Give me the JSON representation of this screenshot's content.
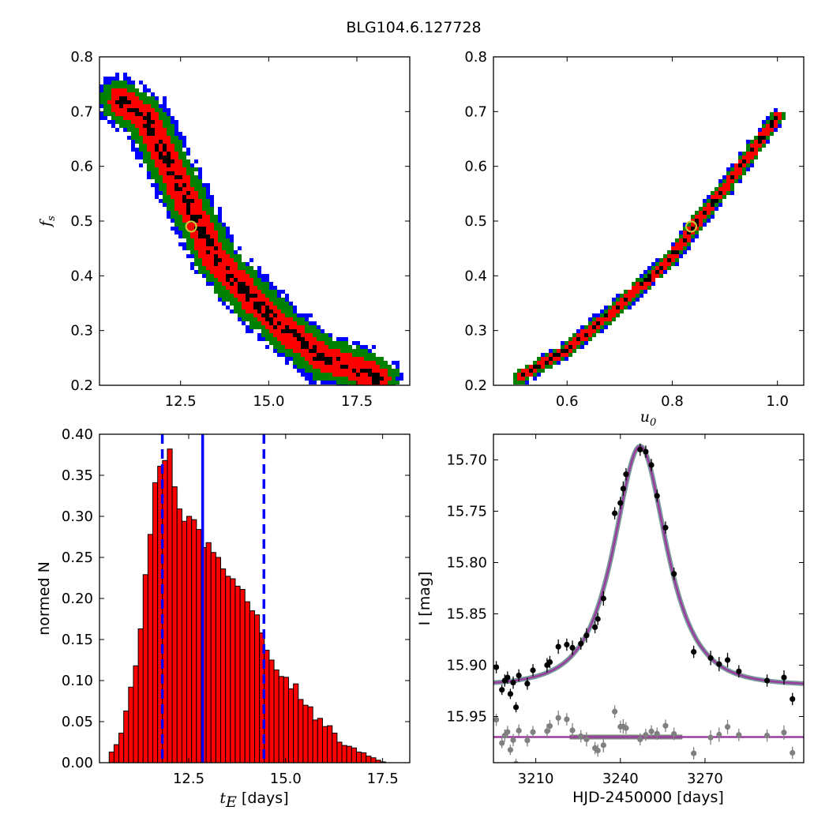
{
  "figure_title": "BLG104.6.127728",
  "colors": {
    "sigma1": "#000000",
    "sigma2": "#ff0000",
    "sigma3": "#008000",
    "sigma4": "#0000ff",
    "best_marker": "#c8c83c",
    "hist_fill": "#ff0000",
    "median_line": "#0000ff",
    "model_line": "#9b3aa0",
    "model_under": "#7a9a9a",
    "data_main": "#000000",
    "data_resid": "#808080"
  },
  "chart_data": [
    {
      "id": "tE_fs",
      "type": "heatmap",
      "xlabel": "",
      "ylabel_main": "f",
      "ylabel_sub": "s",
      "xlim": [
        10.2,
        19.0
      ],
      "ylim": [
        0.2,
        0.8
      ],
      "xticks": [
        12.5,
        15.0,
        17.5
      ],
      "xtick_labels": [
        "12.5",
        "15.0",
        "17.5"
      ],
      "yticks": [
        0.2,
        0.3,
        0.4,
        0.5,
        0.6,
        0.7,
        0.8
      ],
      "ytick_labels": [
        "0.2",
        "0.3",
        "0.4",
        "0.5",
        "0.6",
        "0.7",
        "0.8"
      ],
      "ridge": [
        [
          10.8,
          0.72
        ],
        [
          11.5,
          0.69
        ],
        [
          12.5,
          0.56
        ],
        [
          13.5,
          0.43
        ],
        [
          14.5,
          0.36
        ],
        [
          15.5,
          0.3
        ],
        [
          16.5,
          0.25
        ],
        [
          17.5,
          0.23
        ],
        [
          18.1,
          0.21
        ]
      ],
      "half_widths": [
        0.25,
        0.6,
        1.0,
        1.25
      ],
      "best_fit": [
        12.8,
        0.49
      ]
    },
    {
      "id": "u0_fs",
      "type": "heatmap",
      "xlabel_main": "u",
      "xlabel_sub": "0",
      "ylabel": "",
      "xlim": [
        0.46,
        1.05
      ],
      "ylim": [
        0.2,
        0.8
      ],
      "xticks": [
        0.6,
        0.8,
        1.0
      ],
      "xtick_labels": [
        "0.6",
        "0.8",
        "1.0"
      ],
      "yticks": [
        0.2,
        0.3,
        0.4,
        0.5,
        0.6,
        0.7,
        0.8
      ],
      "ytick_labels": [
        "0.2",
        "0.3",
        "0.4",
        "0.5",
        "0.6",
        "0.7",
        "0.8"
      ],
      "ridge": [
        [
          0.51,
          0.215
        ],
        [
          0.6,
          0.265
        ],
        [
          0.7,
          0.345
        ],
        [
          0.8,
          0.435
        ],
        [
          0.84,
          0.49
        ],
        [
          0.9,
          0.56
        ],
        [
          1.0,
          0.69
        ]
      ],
      "half_widths": [
        0.006,
        0.014,
        0.022,
        0.028
      ],
      "best_fit": [
        0.836,
        0.49
      ]
    },
    {
      "id": "tE_hist",
      "type": "bar",
      "xlabel_main": "t",
      "xlabel_sub": "E",
      "xlabel_rest": " [days]",
      "ylabel": "normed N",
      "xlim": [
        10.2,
        18.2
      ],
      "ylim": [
        0.0,
        0.4
      ],
      "xticks": [
        12.5,
        15.0,
        17.5
      ],
      "xtick_labels": [
        "12.5",
        "15.0",
        "17.5"
      ],
      "yticks": [
        0.0,
        0.05,
        0.1,
        0.15,
        0.2,
        0.25,
        0.3,
        0.35,
        0.4
      ],
      "ytick_labels": [
        "0.00",
        "0.05",
        "0.10",
        "0.15",
        "0.20",
        "0.25",
        "0.30",
        "0.35",
        "0.40"
      ],
      "bin_start": 10.45,
      "bin_width": 0.125,
      "values": [
        0.013,
        0.022,
        0.036,
        0.063,
        0.092,
        0.118,
        0.163,
        0.229,
        0.278,
        0.341,
        0.361,
        0.368,
        0.382,
        0.336,
        0.309,
        0.294,
        0.3,
        0.296,
        0.284,
        0.262,
        0.268,
        0.256,
        0.25,
        0.236,
        0.227,
        0.224,
        0.215,
        0.211,
        0.196,
        0.185,
        0.18,
        0.158,
        0.137,
        0.125,
        0.113,
        0.105,
        0.104,
        0.09,
        0.096,
        0.077,
        0.07,
        0.068,
        0.052,
        0.054,
        0.044,
        0.045,
        0.036,
        0.025,
        0.021,
        0.02,
        0.018,
        0.013,
        0.012,
        0.008,
        0.006,
        0.003,
        0.001
      ],
      "median": 12.86,
      "lower": 11.82,
      "upper": 14.44
    },
    {
      "id": "lightcurve",
      "type": "scatter",
      "xlabel": "HJD-2450000 [days]",
      "ylabel": "I [mag]",
      "xlim": [
        3195,
        3305
      ],
      "ylim": [
        15.995,
        15.675
      ],
      "xticks": [
        3210,
        3240,
        3270
      ],
      "xtick_labels": [
        "3210",
        "3240",
        "3270"
      ],
      "yticks": [
        15.7,
        15.75,
        15.8,
        15.85,
        15.9,
        15.95
      ],
      "ytick_labels": [
        "15.70",
        "15.75",
        "15.80",
        "15.85",
        "15.90",
        "15.95"
      ],
      "model": {
        "t0": 3247,
        "u0": 0.836,
        "tE": 12.86,
        "fs": 0.49,
        "base": 15.92
      },
      "resid_offset": 15.97,
      "points": [
        [
          3196,
          15.902,
          0.006
        ],
        [
          3198,
          15.924,
          0.005
        ],
        [
          3199,
          15.915,
          0.006
        ],
        [
          3200,
          15.912,
          0.006
        ],
        [
          3201,
          15.928,
          0.005
        ],
        [
          3202,
          15.917,
          0.006
        ],
        [
          3203,
          15.941,
          0.005
        ],
        [
          3204,
          15.91,
          0.006
        ],
        [
          3207,
          15.918,
          0.006
        ],
        [
          3209,
          15.905,
          0.006
        ],
        [
          3214,
          15.9,
          0.007
        ],
        [
          3215,
          15.897,
          0.006
        ],
        [
          3218,
          15.882,
          0.007
        ],
        [
          3221,
          15.88,
          0.006
        ],
        [
          3223,
          15.883,
          0.007
        ],
        [
          3226,
          15.879,
          0.006
        ],
        [
          3228,
          15.871,
          0.007
        ],
        [
          3231,
          15.863,
          0.006
        ],
        [
          3232,
          15.855,
          0.006
        ],
        [
          3234,
          15.835,
          0.007
        ],
        [
          3238,
          15.752,
          0.006
        ],
        [
          3240,
          15.742,
          0.006
        ],
        [
          3241,
          15.728,
          0.007
        ],
        [
          3242,
          15.714,
          0.006
        ],
        [
          3247,
          15.69,
          0.006
        ],
        [
          3249,
          15.692,
          0.006
        ],
        [
          3251,
          15.705,
          0.006
        ],
        [
          3253,
          15.735,
          0.006
        ],
        [
          3256,
          15.766,
          0.006
        ],
        [
          3259,
          15.811,
          0.006
        ],
        [
          3266,
          15.887,
          0.006
        ],
        [
          3272,
          15.893,
          0.007
        ],
        [
          3275,
          15.899,
          0.007
        ],
        [
          3278,
          15.895,
          0.007
        ],
        [
          3282,
          15.906,
          0.006
        ],
        [
          3292,
          15.915,
          0.006
        ],
        [
          3298,
          15.912,
          0.007
        ],
        [
          3301,
          15.933,
          0.006
        ]
      ]
    }
  ]
}
